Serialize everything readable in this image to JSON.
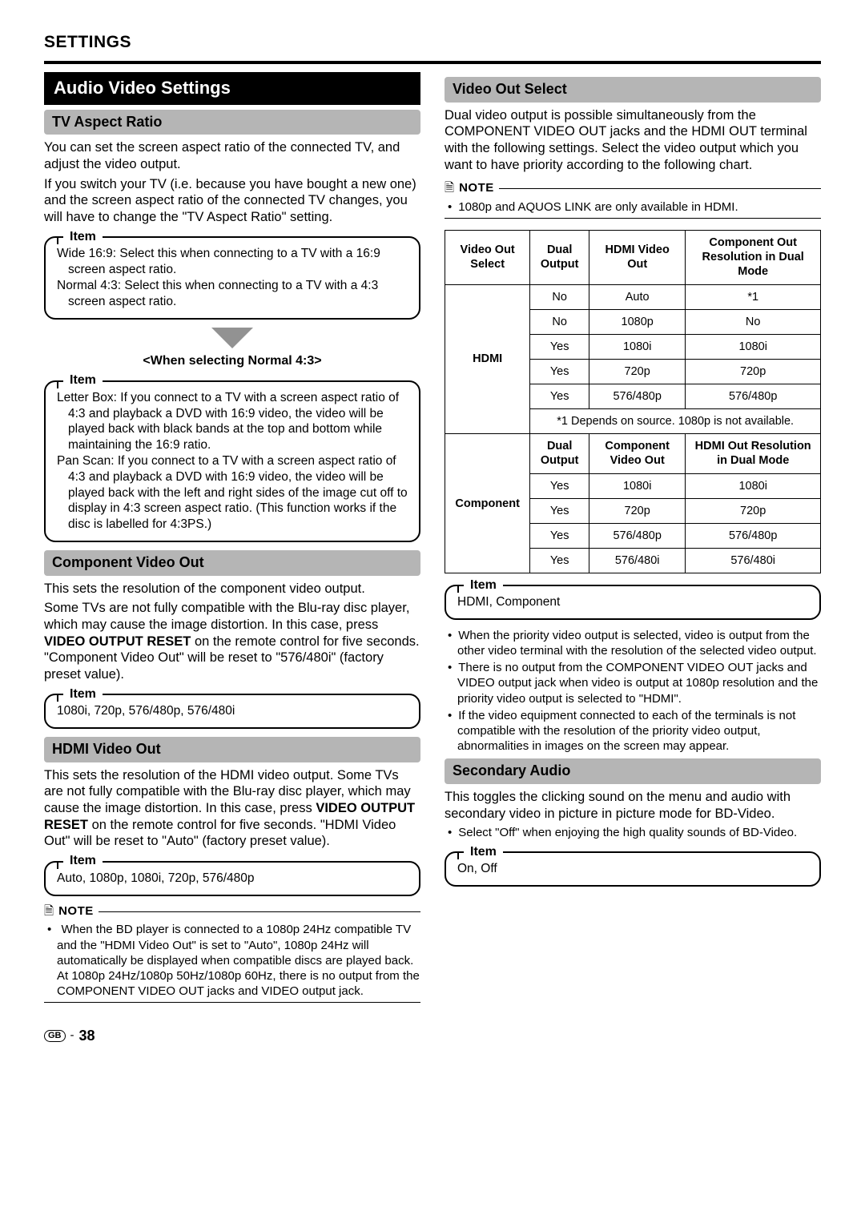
{
  "page": {
    "section_title": "SETTINGS",
    "page_number_label": "38",
    "region_code": "GB",
    "colors": {
      "heading_gray": "#b5b5b5",
      "arrow_gray": "#929292"
    }
  },
  "left": {
    "main_heading": "Audio Video Settings",
    "tv_aspect": {
      "heading": "TV Aspect Ratio",
      "p1": "You can set the screen aspect ratio of the connected TV, and adjust the video output.",
      "p2": "If you switch your TV (i.e. because you have bought a new one) and the screen aspect ratio of the connected TV changes, you will have to change the \"TV Aspect Ratio\" setting.",
      "item_legend": "Item",
      "item_lines": [
        "Wide 16:9: Select this when connecting to a TV with a 16:9 screen aspect ratio.",
        "Normal 4:3: Select this when connecting to a TV with a 4:3 screen aspect ratio."
      ],
      "sub_title": "<When selecting Normal 4:3>",
      "item2_legend": "Item",
      "item2_lines": [
        "Letter Box: If you connect to a TV with a screen aspect ratio of 4:3 and playback a DVD with 16:9 video, the video will be played back with black bands at the top and bottom while maintaining the 16:9 ratio.",
        "Pan Scan: If you connect to a TV with a screen aspect ratio of 4:3 and playback a DVD with 16:9 video, the video will be played back with the left and right sides of the image cut off to display in 4:3 screen aspect ratio. (This function works if the disc is labelled for 4:3PS.)"
      ]
    },
    "component": {
      "heading": "Component Video Out",
      "p1": "This sets the resolution of the component video output.",
      "p2a": "Some TVs are not fully compatible with the Blu-ray disc player, which may cause the image distortion. In this case, press ",
      "p2b_bold": "VIDEO OUTPUT RESET",
      "p2c": " on the remote control for five seconds. \"Component Video Out\" will be reset to \"576/480i\" (factory preset value).",
      "item_legend": "Item",
      "item_text": "1080i, 720p, 576/480p, 576/480i"
    },
    "hdmi": {
      "heading": "HDMI Video Out",
      "p1a": "This sets the resolution of the HDMI video output. Some TVs are not fully compatible with the Blu-ray disc player, which may cause the image distortion. In this case, press ",
      "p1b_bold": "VIDEO OUTPUT RESET",
      "p1c": " on the remote control for five seconds. \"HDMI Video Out\" will be reset to \"Auto\" (factory preset value).",
      "item_legend": "Item",
      "item_text": "Auto, 1080p, 1080i, 720p, 576/480p",
      "note_label": "NOTE",
      "note1a": "When the BD player is connected to a 1080p 24Hz compatible TV and the \"HDMI Video Out\" is set to \"Auto\", 1080p 24Hz will automatically be displayed when compatible discs are played back.",
      "note1b": "At 1080p 24Hz/1080p 50Hz/1080p 60Hz, there is no output from the COMPONENT VIDEO OUT jacks and VIDEO output jack."
    }
  },
  "right": {
    "video_out": {
      "heading": "Video Out Select",
      "p1": "Dual video output is possible simultaneously from the COMPONENT VIDEO OUT jacks and the HDMI OUT terminal with the following settings. Select the video output which you want to have priority according to the following chart.",
      "note_label": "NOTE",
      "note1": "1080p and AQUOS LINK are only available in HDMI.",
      "table": {
        "top_header": [
          "Video Out Select",
          "Dual Output",
          "HDMI Video Out",
          "Component Out Resolution in Dual Mode"
        ],
        "hdmi_label": "HDMI",
        "hdmi_rows": [
          [
            "No",
            "Auto",
            "*1"
          ],
          [
            "No",
            "1080p",
            "No"
          ],
          [
            "Yes",
            "1080i",
            "1080i"
          ],
          [
            "Yes",
            "720p",
            "720p"
          ],
          [
            "Yes",
            "576/480p",
            "576/480p"
          ]
        ],
        "hdmi_footnote": "*1 Depends on source. 1080p is not available.",
        "mid_header": [
          "Dual Output",
          "Component Video Out",
          "HDMI Out Resolution in Dual Mode"
        ],
        "comp_label": "Component",
        "comp_rows": [
          [
            "Yes",
            "1080i",
            "1080i"
          ],
          [
            "Yes",
            "720p",
            "720p"
          ],
          [
            "Yes",
            "576/480p",
            "576/480p"
          ],
          [
            "Yes",
            "576/480i",
            "576/480i"
          ]
        ]
      },
      "item_legend": "Item",
      "item_text": "HDMI, Component",
      "bullets": [
        "When the priority video output is selected, video is output from the other video terminal with the resolution of the selected video output.",
        "There is no output from the COMPONENT VIDEO OUT jacks and VIDEO output jack when video is output at 1080p resolution and the priority video output is selected to \"HDMI\".",
        "If the video equipment connected to each of the terminals is not compatible with the resolution of the priority video output, abnormalities in images on the screen may appear."
      ]
    },
    "secondary": {
      "heading": "Secondary Audio",
      "p1": "This toggles the clicking sound on the menu and audio with secondary video in picture in picture mode for BD-Video.",
      "bullet": "Select \"Off\" when enjoying the high quality sounds of BD-Video.",
      "item_legend": "Item",
      "item_text": "On, Off"
    }
  }
}
